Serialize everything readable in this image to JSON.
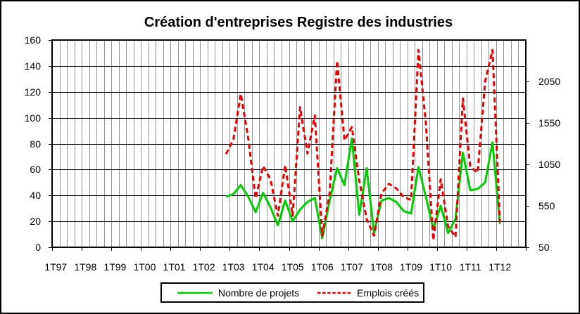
{
  "title": "Création d'entreprises Registre des industries",
  "legend": {
    "items": [
      {
        "label": "Nombre de projets"
      },
      {
        "label": "Emplois créés"
      }
    ]
  },
  "chart_data": {
    "type": "line",
    "title": "Création d'entreprises Registre des industries",
    "x_labels": [
      "1T97",
      "1T98",
      "1T99",
      "1T00",
      "1T01",
      "1T02",
      "1T03",
      "1T04",
      "1T05",
      "1T06",
      "1T07",
      "1T08",
      "1T09",
      "1T10",
      "1T11",
      "1T12"
    ],
    "total_categories": 64,
    "categories_per_label": 4,
    "left_axis": {
      "min": 0,
      "max": 160,
      "step": 20,
      "tick_labels": [
        0,
        20,
        40,
        60,
        80,
        100,
        120,
        140,
        160
      ]
    },
    "right_axis": {
      "min": 50,
      "max": 2550,
      "step": 500,
      "tick_labels": [
        50,
        550,
        1050,
        1550,
        2050
      ]
    },
    "grid": {
      "vertical_color": "#949494",
      "horizontal_color": "#000000"
    },
    "series": [
      {
        "name": "Nombre de projets",
        "axis": "left",
        "color": "#00cc00",
        "style": "solid",
        "start_index": 23,
        "values": [
          39,
          41,
          48,
          39,
          27,
          42,
          31,
          17,
          36,
          20,
          29,
          35,
          38,
          7,
          36,
          61,
          48,
          84,
          25,
          61,
          11,
          36,
          38,
          35,
          28,
          26,
          62,
          39,
          14,
          32,
          11,
          22,
          73,
          44,
          45,
          50,
          81,
          18
        ]
      },
      {
        "name": "Emplois créés",
        "axis": "right",
        "color": "#e60000",
        "style": "dashed",
        "start_index": 23,
        "values": [
          1175,
          1350,
          1900,
          1365,
          640,
          1030,
          870,
          430,
          1040,
          430,
          1740,
          1180,
          1640,
          190,
          700,
          2300,
          1340,
          1500,
          855,
          390,
          190,
          700,
          815,
          760,
          655,
          620,
          2430,
          1550,
          135,
          870,
          300,
          175,
          1845,
          1020,
          950,
          2050,
          2430,
          350
        ]
      }
    ]
  }
}
